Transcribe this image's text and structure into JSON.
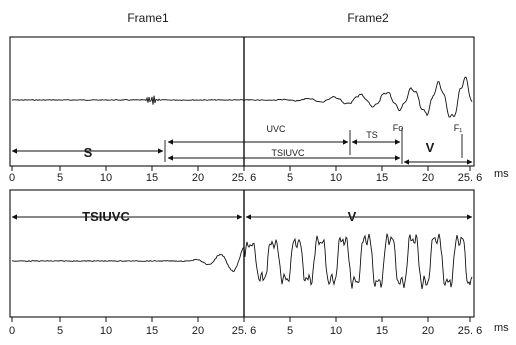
{
  "frames": [
    "Frame1",
    "Frame2"
  ],
  "unit": "ms",
  "tick_labels": [
    "0",
    "5",
    "10",
    "15",
    "20",
    "25. 6",
    "5",
    "10",
    "15",
    "20",
    "25. 6"
  ],
  "panel1": {
    "segments": [
      {
        "label": "S",
        "size": "big"
      },
      {
        "label": "UVC",
        "size": "small"
      },
      {
        "label": "TSIUVC",
        "size": "small"
      },
      {
        "label": "TS",
        "size": "small"
      },
      {
        "label": "V",
        "size": "big"
      }
    ],
    "markers": [
      "Fo",
      "F₁"
    ]
  },
  "panel2": {
    "segments": [
      {
        "label": "TSIUVC",
        "size": "big"
      },
      {
        "label": "V",
        "size": "big"
      }
    ]
  }
}
